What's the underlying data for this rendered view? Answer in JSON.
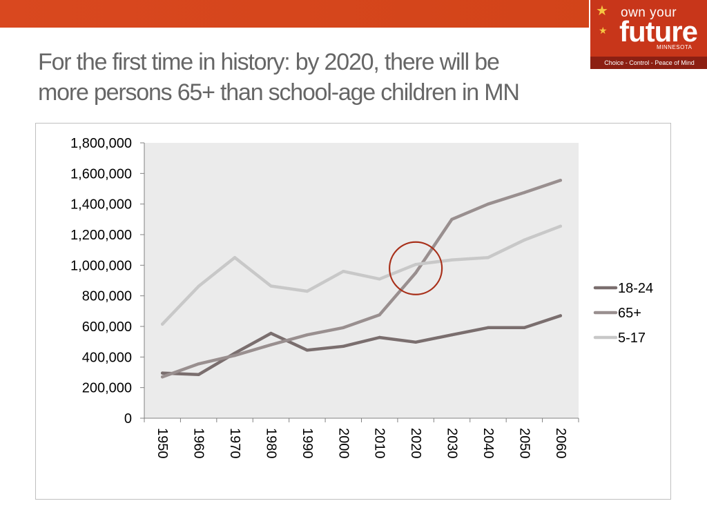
{
  "header": {
    "band_color": "#d9481f",
    "title_line1": "For the first time in history: by 2020, there will be",
    "title_line2": "more persons 65+ than school-age children in MN"
  },
  "logo": {
    "line1": "own your",
    "line2": "future",
    "line3": "MINNESOTA",
    "tagline": "Choice - Control - Peace of Mind",
    "icon": "star-icon",
    "color": "#c8361a"
  },
  "chart_data": {
    "type": "line",
    "categories": [
      "1950",
      "1960",
      "1970",
      "1980",
      "1990",
      "2000",
      "2010",
      "2020",
      "2030",
      "2040",
      "2050",
      "2060"
    ],
    "ylim": [
      0,
      1800000
    ],
    "yticks": [
      0,
      200000,
      400000,
      600000,
      800000,
      1000000,
      1200000,
      1400000,
      1600000,
      1800000
    ],
    "ytick_labels": [
      "0",
      "200,000",
      "400,000",
      "600,000",
      "800,000",
      "1,000,000",
      "1,200,000",
      "1,400,000",
      "1,600,000",
      "1,800,000"
    ],
    "grid": false,
    "plot_background": "#ebebeb",
    "legend_position": "right",
    "series": [
      {
        "name": "18-24",
        "color": "#7a6e6e",
        "values": [
          295000,
          285000,
          425000,
          555000,
          445000,
          470000,
          528000,
          497000,
          545000,
          592000,
          592000,
          670000
        ]
      },
      {
        "name": "65+",
        "color": "#998f8f",
        "values": [
          270000,
          355000,
          410000,
          480000,
          545000,
          592000,
          676000,
          950000,
          1300000,
          1400000,
          1475000,
          1555000
        ]
      },
      {
        "name": "5-17",
        "color": "#c8c8c8",
        "values": [
          615000,
          862000,
          1050000,
          864000,
          830000,
          960000,
          910000,
          1005000,
          1035000,
          1050000,
          1165000,
          1255000
        ]
      }
    ],
    "annotation": {
      "type": "circle",
      "x": "2020",
      "y": 980000,
      "color": "#a8301a"
    }
  }
}
